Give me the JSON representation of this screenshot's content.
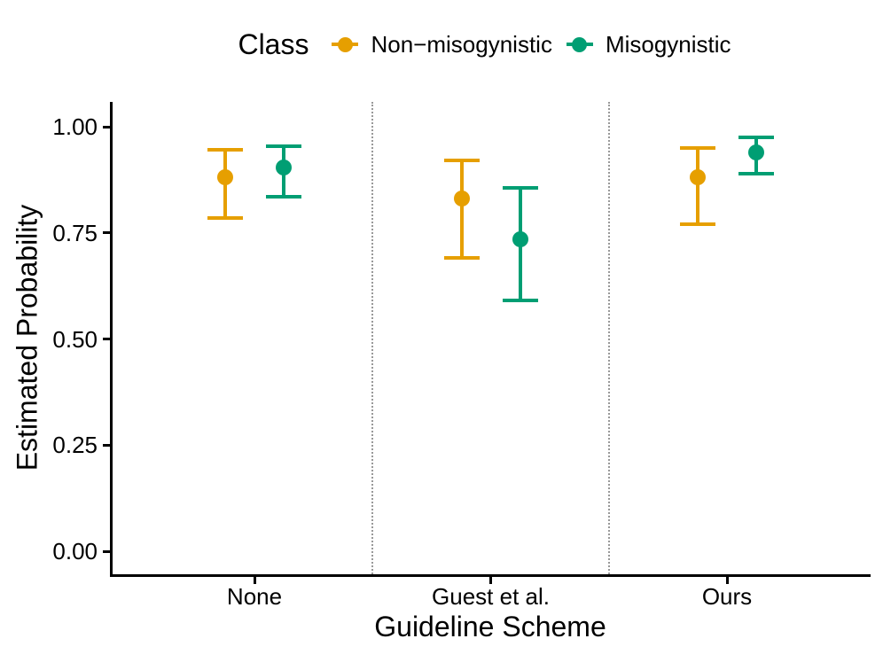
{
  "chart_data": {
    "type": "pointrange",
    "legend_title": "Class",
    "legend_position": "top",
    "xlabel": "Guideline Scheme",
    "ylabel": "Estimated Probability",
    "categories": [
      "None",
      "Guest et al.",
      "Ours"
    ],
    "y_axis": {
      "range": [
        0.0,
        1.0
      ],
      "ticks": [
        0.0,
        0.25,
        0.5,
        0.75,
        1.0
      ],
      "tick_labels": [
        "0.00",
        "0.25",
        "0.50",
        "0.75",
        "1.00"
      ]
    },
    "grid": "none (dotted vertical separators between categories only)",
    "separator_color": "#999999",
    "axis_color": "#000000",
    "series": [
      {
        "name": "Non−misogynistic",
        "color": "#E69F00",
        "values": [
          {
            "category": "None",
            "estimate": 0.88,
            "lower": 0.785,
            "upper": 0.945
          },
          {
            "category": "Guest et al.",
            "estimate": 0.83,
            "lower": 0.69,
            "upper": 0.92
          },
          {
            "category": "Ours",
            "estimate": 0.88,
            "lower": 0.77,
            "upper": 0.95
          }
        ]
      },
      {
        "name": "Misogynistic",
        "color": "#009E73",
        "values": [
          {
            "category": "None",
            "estimate": 0.905,
            "lower": 0.835,
            "upper": 0.955
          },
          {
            "category": "Guest et al.",
            "estimate": 0.735,
            "lower": 0.59,
            "upper": 0.855
          },
          {
            "category": "Ours",
            "estimate": 0.94,
            "lower": 0.89,
            "upper": 0.975
          }
        ]
      }
    ]
  }
}
